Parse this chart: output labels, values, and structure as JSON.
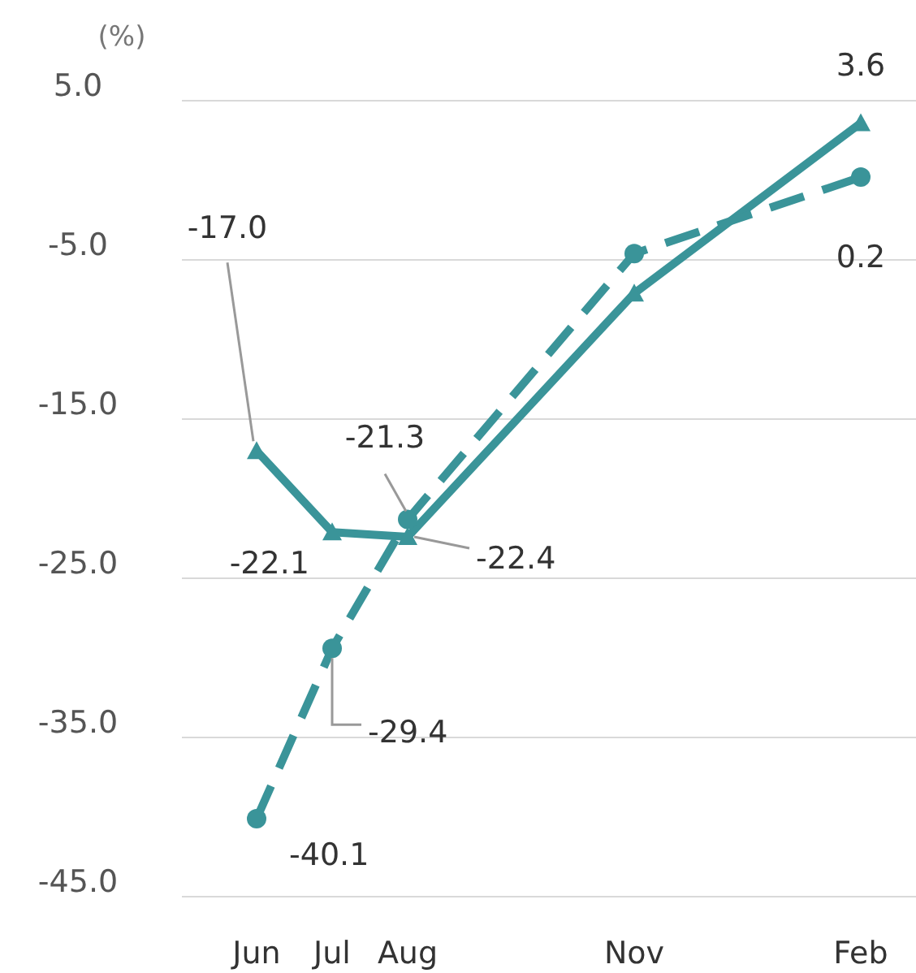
{
  "chart_data": {
    "type": "line",
    "ylabel": "(%)",
    "categories": [
      "Jun",
      "Jul",
      "Aug",
      null,
      null,
      "Nov",
      null,
      null,
      "Feb"
    ],
    "ylim": [
      -45,
      5
    ],
    "yticks": [
      {
        "value": 5,
        "label": "5.0"
      },
      {
        "value": -5,
        "label": "-5.0"
      },
      {
        "value": -15,
        "label": "-15.0"
      },
      {
        "value": -25,
        "label": "-25.0"
      },
      {
        "value": -35,
        "label": "-35.0"
      },
      {
        "value": -45,
        "label": "-45.0"
      }
    ],
    "grid": "y",
    "series": [
      {
        "color": "#3a9499",
        "values": [
          -17.0,
          -22.1,
          -22.4,
          null,
          null,
          -7.1,
          null,
          null,
          3.6
        ],
        "value_labels": [
          "-17.0",
          "-22.1",
          "-22.4",
          null,
          null,
          null,
          null,
          null,
          "3.6"
        ],
        "marker": "triangle",
        "line_style": "solid"
      },
      {
        "color": "#3a9499",
        "values": [
          -40.1,
          -29.4,
          -21.3,
          null,
          null,
          -4.6,
          null,
          null,
          0.2
        ],
        "value_labels": [
          "-40.1",
          "-29.4",
          "-21.3",
          null,
          null,
          null,
          null,
          null,
          "0.2"
        ],
        "marker": "circle",
        "line_style": "dashed"
      }
    ]
  }
}
